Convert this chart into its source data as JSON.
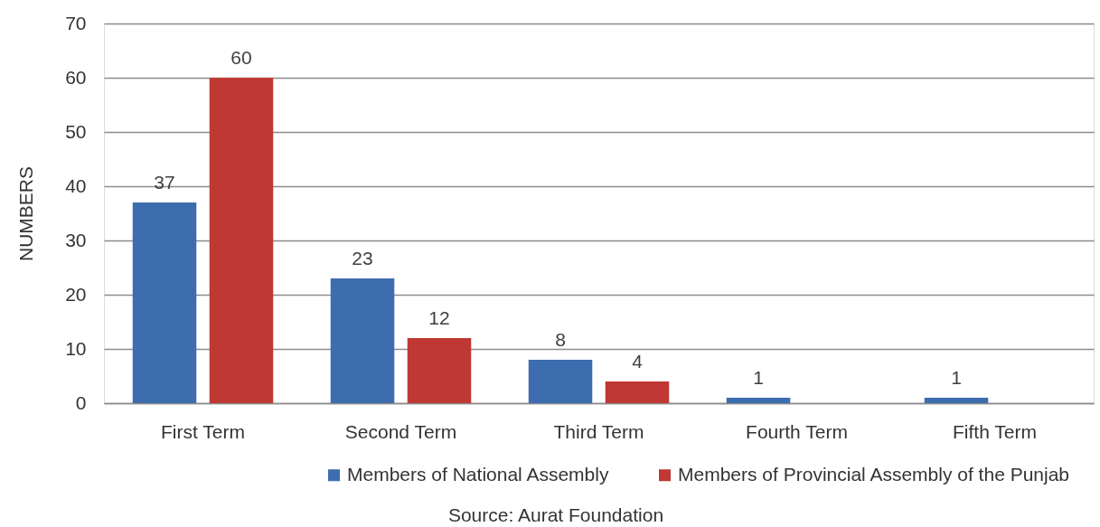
{
  "chart_data": {
    "type": "bar",
    "ylabel": "NUMBERS",
    "categories": [
      "First Term",
      "Second Term",
      "Third Term",
      "Fourth Term",
      "Fifth Term"
    ],
    "series": [
      {
        "name": "Members of National Assembly",
        "color": "#3d6daf",
        "values": [
          37,
          23,
          8,
          1,
          1
        ]
      },
      {
        "name": "Members of Provincial Assembly of the Punjab",
        "color": "#bf3833",
        "values": [
          60,
          12,
          4,
          null,
          null
        ]
      }
    ],
    "ylim": [
      0,
      70
    ],
    "yticks": [
      0,
      10,
      20,
      30,
      40,
      50,
      60,
      70
    ],
    "grid": "y",
    "legend": "bottom",
    "data_labels": true,
    "annotations": [
      "Source: Aurat Foundation"
    ]
  }
}
